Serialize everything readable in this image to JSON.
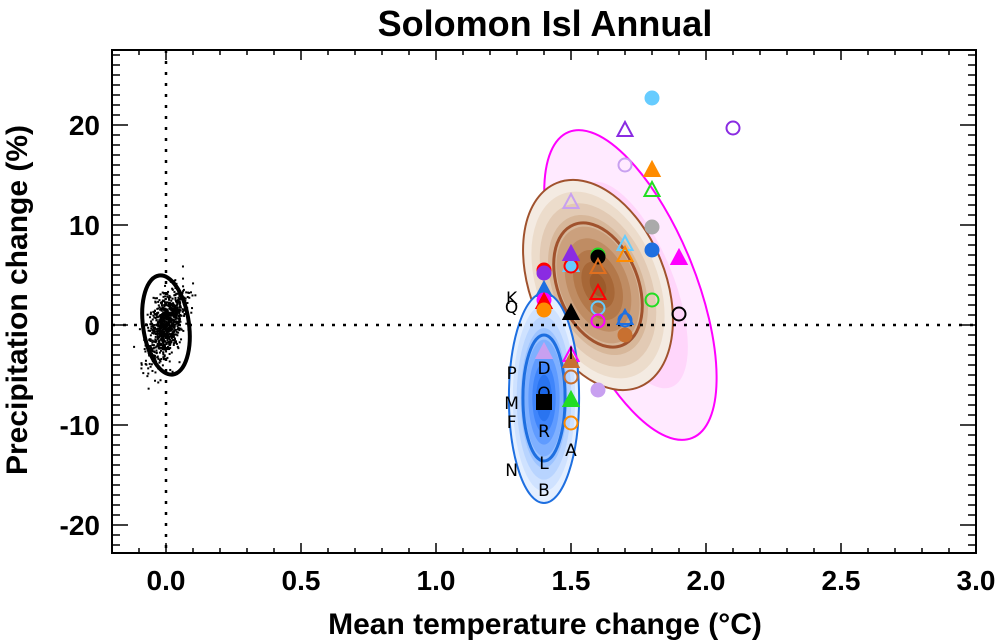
{
  "chart_data": {
    "type": "scatter",
    "title": "Solomon Isl Annual",
    "xlabel": "Mean temperature change (°C)",
    "ylabel": "Precipitation change (%)",
    "xlim": [
      -0.2,
      3.0
    ],
    "ylim": [
      -22.8,
      27.5
    ],
    "xticks": [
      {
        "value": 0.0,
        "label": "0.0"
      },
      {
        "value": 0.5,
        "label": "0.5"
      },
      {
        "value": 1.0,
        "label": "1.0"
      },
      {
        "value": 1.5,
        "label": "1.5"
      },
      {
        "value": 2.0,
        "label": "2.0"
      },
      {
        "value": 2.5,
        "label": "2.5"
      },
      {
        "value": 3.0,
        "label": "3.0"
      }
    ],
    "yticks": [
      {
        "value": -20,
        "label": "-20"
      },
      {
        "value": -10,
        "label": "-10"
      },
      {
        "value": 0,
        "label": "0"
      },
      {
        "value": 10,
        "label": "10"
      },
      {
        "value": 20,
        "label": "20"
      }
    ],
    "reference_lines": {
      "x": 0,
      "y": 0,
      "style": "dotted"
    },
    "grid": false,
    "legend": "none",
    "natural_variability_cloud": {
      "name": "natural variability",
      "color": "#000000",
      "center": [
        0.0,
        0.0
      ],
      "x_range": [
        -0.15,
        0.1
      ],
      "y_range": [
        -7,
        8
      ]
    },
    "ellipses": [
      {
        "name": "natural variability",
        "color": "#000000",
        "center": [
          0.0,
          0.0
        ],
        "semi_x": 0.085,
        "semi_y": 5.0,
        "tilt": "slight positive"
      },
      {
        "name": "pink-model-distribution",
        "color": "#ff00ff",
        "fill_color": "#ffccff",
        "center": [
          1.72,
          4.0
        ],
        "semi_x": 0.24,
        "semi_y": 16.5,
        "tilt": "positive"
      },
      {
        "name": "brown-model-distribution",
        "color": "#a0522d",
        "fill_color": "#8b4513",
        "center": [
          1.6,
          4.0
        ],
        "semi_x": 0.25,
        "semi_y": 11.0,
        "tilt": "positive",
        "inner_contour_semi_y": 6.5
      },
      {
        "name": "blue-model-distribution",
        "color": "#1e6fe0",
        "fill_color": "#1e6fe0",
        "center": [
          1.4,
          -7.3
        ],
        "semi_x": 0.13,
        "semi_y": 10.5,
        "tilt": "none",
        "inner_contour_semi_y": 6.3
      }
    ],
    "points": [
      {
        "x": 1.8,
        "y": 22.7,
        "marker": "circle",
        "filled": true,
        "color": "#66ccff"
      },
      {
        "x": 2.1,
        "y": 19.7,
        "marker": "circle",
        "filled": false,
        "color": "#8a2be2"
      },
      {
        "x": 1.7,
        "y": 19.5,
        "marker": "triangle",
        "filled": false,
        "color": "#8a2be2"
      },
      {
        "x": 1.7,
        "y": 16.0,
        "marker": "circle",
        "filled": false,
        "color": "#c8a0f0"
      },
      {
        "x": 1.8,
        "y": 15.5,
        "marker": "triangle",
        "filled": true,
        "color": "#ff8c00"
      },
      {
        "x": 1.8,
        "y": 13.5,
        "marker": "triangle",
        "filled": false,
        "color": "#22dd22"
      },
      {
        "x": 1.5,
        "y": 12.3,
        "marker": "triangle",
        "filled": false,
        "color": "#c8a0f0"
      },
      {
        "x": 1.8,
        "y": 9.8,
        "marker": "circle",
        "filled": true,
        "color": "#aaaaaa"
      },
      {
        "x": 1.7,
        "y": 8.1,
        "marker": "triangle",
        "filled": false,
        "color": "#66ccff"
      },
      {
        "x": 1.8,
        "y": 7.5,
        "marker": "circle",
        "filled": true,
        "color": "#1e6fe0"
      },
      {
        "x": 1.7,
        "y": 7.0,
        "marker": "triangle",
        "filled": false,
        "color": "#ff8c00"
      },
      {
        "x": 1.9,
        "y": 6.7,
        "marker": "triangle",
        "filled": true,
        "color": "#ff00ff"
      },
      {
        "x": 1.6,
        "y": 7.0,
        "marker": "circle",
        "filled": false,
        "color": "#22dd22"
      },
      {
        "x": 1.6,
        "y": 6.8,
        "marker": "circle",
        "filled": true,
        "color": "#000000"
      },
      {
        "x": 1.6,
        "y": 5.8,
        "marker": "triangle",
        "filled": false,
        "color": "#e07020"
      },
      {
        "x": 1.5,
        "y": 6.0,
        "marker": "triangle",
        "filled": true,
        "color": "#66ccff"
      },
      {
        "x": 1.5,
        "y": 5.9,
        "marker": "circle",
        "filled": false,
        "color": "#ff0000"
      },
      {
        "x": 1.5,
        "y": 7.1,
        "marker": "triangle",
        "filled": true,
        "color": "#8a2be2"
      },
      {
        "x": 1.4,
        "y": 5.5,
        "marker": "circle",
        "filled": true,
        "color": "#ff0000"
      },
      {
        "x": 1.4,
        "y": 5.2,
        "marker": "circle",
        "filled": true,
        "color": "#8a2be2"
      },
      {
        "x": 1.4,
        "y": 3.5,
        "marker": "triangle",
        "filled": true,
        "color": "#1e6fe0"
      },
      {
        "x": 1.4,
        "y": 2.5,
        "marker": "circle",
        "filled": true,
        "color": "#ff00ff"
      },
      {
        "x": 1.4,
        "y": 2.3,
        "marker": "triangle",
        "filled": true,
        "color": "#ff0000"
      },
      {
        "x": 1.4,
        "y": 1.5,
        "marker": "circle",
        "filled": true,
        "color": "#ff8c00"
      },
      {
        "x": 1.5,
        "y": 1.2,
        "marker": "triangle",
        "filled": true,
        "color": "#000000"
      },
      {
        "x": 1.6,
        "y": 3.2,
        "marker": "triangle",
        "filled": false,
        "color": "#ff0000"
      },
      {
        "x": 1.6,
        "y": 1.7,
        "marker": "circle",
        "filled": false,
        "color": "#66ccff"
      },
      {
        "x": 1.6,
        "y": 0.4,
        "marker": "circle",
        "filled": false,
        "color": "#ff00ff"
      },
      {
        "x": 1.7,
        "y": 0.7,
        "marker": "triangle",
        "filled": false,
        "color": "#1e6fe0"
      },
      {
        "x": 1.7,
        "y": 0.5,
        "marker": "circle",
        "filled": false,
        "color": "#1e6fe0"
      },
      {
        "x": 1.8,
        "y": 2.5,
        "marker": "circle",
        "filled": false,
        "color": "#22dd22"
      },
      {
        "x": 1.9,
        "y": 1.1,
        "marker": "circle",
        "filled": false,
        "color": "#000000"
      },
      {
        "x": 1.7,
        "y": -1.0,
        "marker": "circle",
        "filled": true,
        "color": "#c87030"
      },
      {
        "x": 1.4,
        "y": -2.7,
        "marker": "triangle",
        "filled": true,
        "color": "#c8a0f0"
      },
      {
        "x": 1.5,
        "y": -3.0,
        "marker": "triangle",
        "filled": false,
        "color": "#ff00ff"
      },
      {
        "x": 1.5,
        "y": -3.6,
        "marker": "triangle",
        "filled": true,
        "color": "#c87030"
      },
      {
        "x": 1.5,
        "y": -5.2,
        "marker": "circle",
        "filled": false,
        "color": "#c87030"
      },
      {
        "x": 1.6,
        "y": -6.5,
        "marker": "circle",
        "filled": true,
        "color": "#c8a0f0"
      },
      {
        "x": 1.5,
        "y": -7.5,
        "marker": "triangle",
        "filled": true,
        "color": "#22dd22"
      },
      {
        "x": 1.4,
        "y": -7.7,
        "marker": "square",
        "filled": true,
        "color": "#000000"
      },
      {
        "x": 1.5,
        "y": -9.8,
        "marker": "circle",
        "filled": false,
        "color": "#ff8c00"
      }
    ],
    "letter_points": [
      {
        "label": "K",
        "x": 1.28,
        "y": 2.7
      },
      {
        "label": "Q",
        "x": 1.28,
        "y": 1.8
      },
      {
        "label": "P",
        "x": 1.28,
        "y": -4.8
      },
      {
        "label": "D",
        "x": 1.4,
        "y": -4.3
      },
      {
        "label": "M",
        "x": 1.28,
        "y": -7.8
      },
      {
        "label": "O",
        "x": 1.4,
        "y": -6.8
      },
      {
        "label": "F",
        "x": 1.28,
        "y": -9.7
      },
      {
        "label": "R",
        "x": 1.4,
        "y": -10.6
      },
      {
        "label": "L",
        "x": 1.4,
        "y": -13.8
      },
      {
        "label": "N",
        "x": 1.28,
        "y": -14.5
      },
      {
        "label": "A",
        "x": 1.5,
        "y": -12.5
      },
      {
        "label": "B",
        "x": 1.4,
        "y": -16.5
      },
      {
        "label": "I",
        "x": 1.5,
        "y": -2.8
      }
    ]
  }
}
